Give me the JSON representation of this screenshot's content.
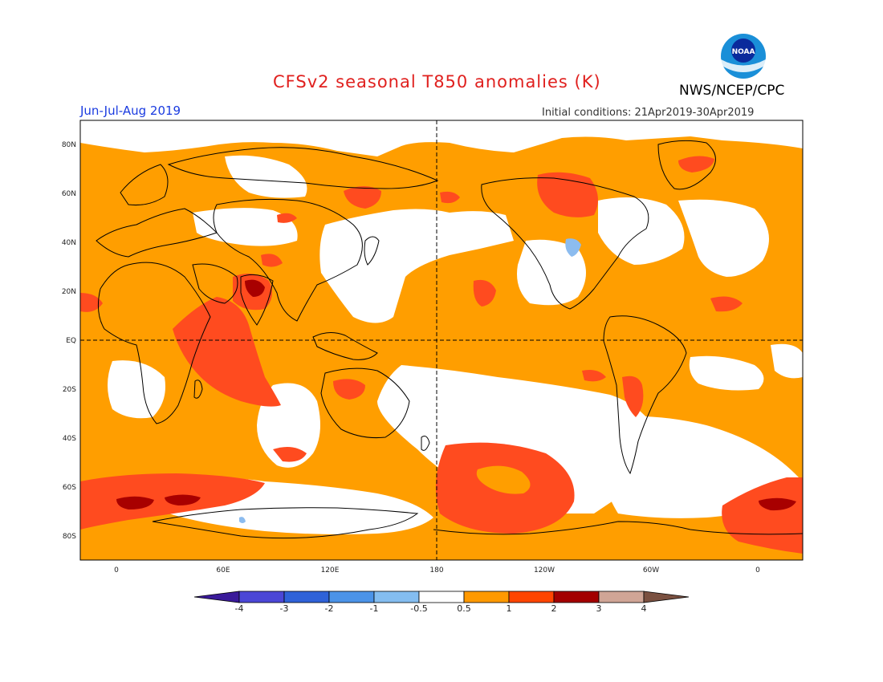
{
  "header": {
    "title": "CFSv2 seasonal T850 anomalies (K)",
    "agency": "NWS/NCEP/CPC",
    "period": "Jun-Jul-Aug 2019",
    "initial_conditions": "Initial conditions: 21Apr2019-30Apr2019",
    "logo_text": "NOAA"
  },
  "map": {
    "projection": "cylindrical equidistant",
    "variable": "T850 anomaly",
    "units": "K",
    "lat_labels": [
      "80N",
      "60N",
      "40N",
      "20N",
      "EQ",
      "20S",
      "40S",
      "60S",
      "80S"
    ],
    "lon_labels": [
      "0",
      "60E",
      "120E",
      "180",
      "120W",
      "60W",
      "0"
    ]
  },
  "colorbar": {
    "labels": [
      "-4",
      "-3",
      "-2",
      "-1",
      "-0.5",
      "0.5",
      "1",
      "2",
      "3",
      "4"
    ],
    "colors": [
      "#3a1a9a",
      "#4b47d6",
      "#2f62d8",
      "#4b93e8",
      "#84bdf0",
      "#ffffff",
      "#ff9900",
      "#ff4500",
      "#a30000",
      "#d0a596",
      "#7a5040"
    ]
  },
  "colors": {
    "title": "#e0201e",
    "period": "#1a3be0",
    "anomaly_0_5_to_1": "#ff9e00",
    "anomaly_1_to_2": "#ff4b1f",
    "anomaly_2_to_3": "#a80000",
    "anomaly_neg": "#8cbcef"
  }
}
